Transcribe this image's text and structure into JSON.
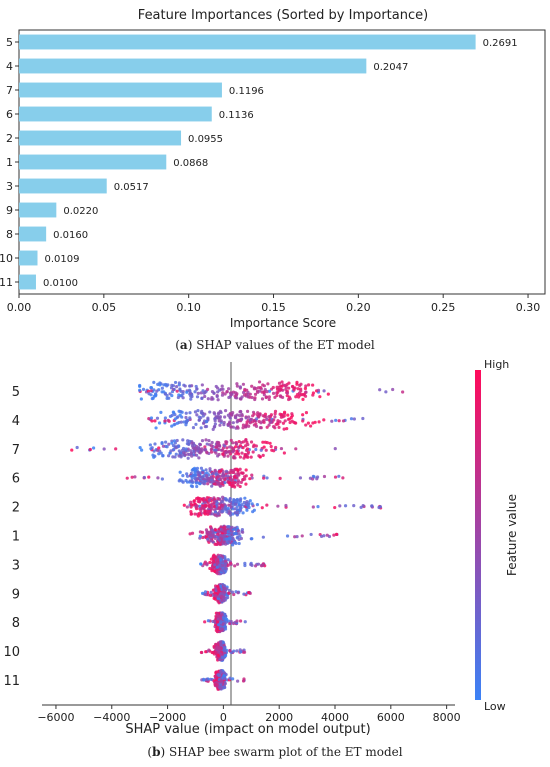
{
  "chart_data": [
    {
      "type": "bar",
      "orientation": "horizontal",
      "title": "Feature Importances (Sorted by Importance)",
      "xlabel": "Importance Score",
      "ylabel": "",
      "categories": [
        "5",
        "4",
        "7",
        "6",
        "2",
        "1",
        "3",
        "9",
        "8",
        "10",
        "11"
      ],
      "values": [
        0.2691,
        0.2047,
        0.1196,
        0.1136,
        0.0955,
        0.0868,
        0.0517,
        0.022,
        0.016,
        0.0109,
        0.01
      ],
      "value_labels": [
        "0.2691",
        "0.2047",
        "0.1196",
        "0.1136",
        "0.0955",
        "0.0868",
        "0.0517",
        "0.0220",
        "0.0160",
        "0.0109",
        "0.0100"
      ],
      "xlim": [
        0,
        0.31
      ],
      "xticks": [
        "0.00",
        "0.05",
        "0.10",
        "0.15",
        "0.20",
        "0.25",
        "0.30"
      ],
      "xtick_values": [
        0,
        0.05,
        0.1,
        0.15,
        0.2,
        0.25,
        0.3
      ],
      "bar_color": "#87ceeb",
      "grid": false,
      "caption_label": "a",
      "caption_text": "SHAP values of the ET model"
    },
    {
      "type": "scatter",
      "subtype": "beeswarm",
      "xlabel": "SHAP value (impact on model output)",
      "ylabel": "",
      "features": [
        "5",
        "4",
        "7",
        "6",
        "2",
        "1",
        "3",
        "9",
        "8",
        "10",
        "11"
      ],
      "xlim": [
        -6500,
        8300
      ],
      "xticks": [
        "−6000",
        "−4000",
        "−2000",
        "0",
        "2000",
        "4000",
        "6000",
        "8000"
      ],
      "xtick_values": [
        -6000,
        -4000,
        -2000,
        0,
        2000,
        4000,
        6000,
        8000
      ],
      "feature_ranges": [
        {
          "feature": "5",
          "min": -3000,
          "max": 7500,
          "low_center": -2700,
          "high_center": 3200
        },
        {
          "feature": "4",
          "min": -3000,
          "max": 5300,
          "low_center": -2000,
          "high_center": 2700
        },
        {
          "feature": "7",
          "min": -5600,
          "max": 4400,
          "low_center": -2300,
          "high_center": 1300
        },
        {
          "feature": "6",
          "min": -3800,
          "max": 4300,
          "low_center": -1000,
          "high_center": 500
        },
        {
          "feature": "2",
          "min": -1400,
          "max": 5700,
          "low_center": 600,
          "high_center": -900
        },
        {
          "feature": "1",
          "min": -1400,
          "max": 4700,
          "low_center": 300,
          "high_center": -300
        },
        {
          "feature": "3",
          "min": -900,
          "max": 1500,
          "low_center": 0,
          "high_center": -300
        },
        {
          "feature": "9",
          "min": -800,
          "max": 1000,
          "low_center": 0,
          "high_center": -200
        },
        {
          "feature": "8",
          "min": -700,
          "max": 900,
          "low_center": 0,
          "high_center": -200
        },
        {
          "feature": "10",
          "min": -800,
          "max": 800,
          "low_center": 0,
          "high_center": -200
        },
        {
          "feature": "11",
          "min": -800,
          "max": 800,
          "low_center": 0,
          "high_center": -200
        }
      ],
      "colorbar": {
        "label": "Feature value",
        "high_label": "High",
        "low_label": "Low",
        "low_color": "#3b82f6",
        "high_color": "#ff0a5a"
      },
      "zero_line_color": "#555555",
      "caption_label": "b",
      "caption_text": "SHAP bee swarm plot of the ET model"
    }
  ]
}
